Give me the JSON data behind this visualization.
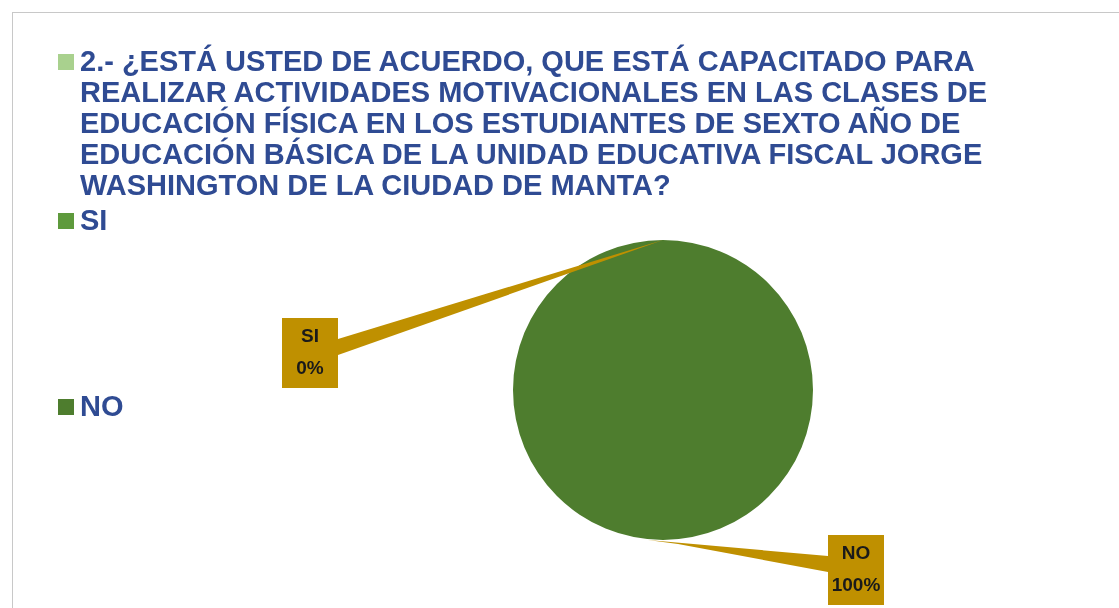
{
  "chart_data": {
    "type": "pie",
    "categories": [
      "2.- ¿ESTÁ USTED DE ACUERDO, QUE ESTÁ CAPACITADO PARA REALIZAR ACTIVIDADES MOTIVACIONALES EN LAS CLASES DE EDUCACIÓN FÍSICA EN LOS ESTUDIANTES DE SEXTO AÑO DE EDUCACIÓN BÁSICA DE LA UNIDAD EDUCATIVA FISCAL JORGE WASHINGTON DE LA CIUDAD DE MANTA?",
      "SI",
      "NO"
    ],
    "values": [
      0,
      0,
      100
    ],
    "colors": [
      "#a9d18e",
      "#5e9a3c",
      "#4e7d2e"
    ],
    "value_labels": [
      null,
      "0%",
      "100%"
    ],
    "legend": "left"
  }
}
